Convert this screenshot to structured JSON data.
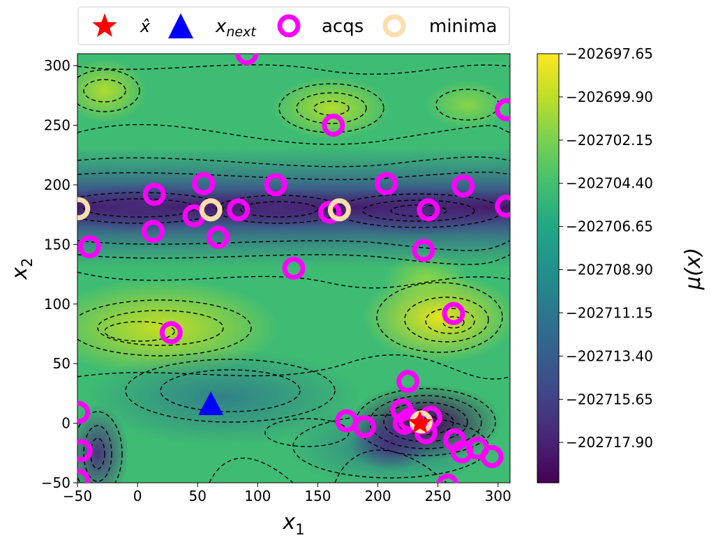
{
  "chart_data": {
    "type": "heatmap",
    "subtype": "contour-map-with-scatter",
    "xlabel": "x",
    "xlabel_sub": "1",
    "ylabel": "x",
    "ylabel_sub": "2",
    "xlim": [
      -50,
      310
    ],
    "ylim": [
      -50,
      310
    ],
    "xticks": [
      -50,
      0,
      50,
      100,
      150,
      200,
      250,
      300
    ],
    "yticks": [
      -50,
      0,
      50,
      100,
      150,
      200,
      250,
      300
    ],
    "xtick_labels": [
      "−50",
      "0",
      "50",
      "100",
      "150",
      "200",
      "250",
      "300"
    ],
    "ytick_labels": [
      "−50",
      "0",
      "50",
      "100",
      "150",
      "200",
      "250",
      "300"
    ],
    "colormap": "viridis",
    "contour_line_style": "dashed black",
    "colorbar": {
      "label": "μ(x)",
      "range": [
        -202720.0,
        -202697.65
      ],
      "ticks": [
        -202697.65,
        -202699.9,
        -202702.15,
        -202704.4,
        -202706.65,
        -202708.9,
        -202711.15,
        -202713.4,
        -202715.65,
        -202717.9
      ],
      "tick_labels": [
        "−202697.65",
        "−202699.90",
        "−202702.15",
        "−202704.40",
        "−202706.65",
        "−202708.90",
        "−202711.15",
        "−202713.40",
        "−202715.65",
        "−202717.90"
      ]
    },
    "legend": {
      "placement": "top-center, above plot",
      "entries": [
        {
          "label": "x̂",
          "marker": "star",
          "color": "#ff0000"
        },
        {
          "label": "x",
          "label_sub": "next",
          "marker": "triangle",
          "color": "#0000ff"
        },
        {
          "label": "acqs",
          "marker": "ring",
          "color": "#ff00ff"
        },
        {
          "label": "minima",
          "marker": "ring",
          "color": "#ffdead"
        }
      ]
    },
    "series": [
      {
        "name": "acqs",
        "points": [
          [
            91,
            310
          ],
          [
            163,
            250
          ],
          [
            307,
            263
          ],
          [
            14,
            192
          ],
          [
            55,
            201
          ],
          [
            115,
            200
          ],
          [
            207,
            201
          ],
          [
            271,
            199
          ],
          [
            47,
            174
          ],
          [
            84,
            179
          ],
          [
            160,
            177
          ],
          [
            242,
            179
          ],
          [
            307,
            182
          ],
          [
            13,
            161
          ],
          [
            67,
            156
          ],
          [
            238,
            145
          ],
          [
            -40,
            148
          ],
          [
            130,
            130
          ],
          [
            263,
            92
          ],
          [
            28,
            76
          ],
          [
            225,
            35
          ],
          [
            -49,
            9
          ],
          [
            220,
            11
          ],
          [
            226,
            3
          ],
          [
            222,
            0
          ],
          [
            244,
            5
          ],
          [
            237,
            0
          ],
          [
            174,
            2
          ],
          [
            189,
            -3
          ],
          [
            240,
            -8
          ],
          [
            264,
            -14
          ],
          [
            270,
            -24
          ],
          [
            283,
            -21
          ],
          [
            295,
            -28
          ],
          [
            -47,
            -23
          ],
          [
            -49,
            -48
          ],
          [
            258,
            -52
          ]
        ]
      },
      {
        "name": "minima",
        "points": [
          [
            -49,
            180
          ],
          [
            61,
            179
          ],
          [
            168,
            179
          ],
          [
            236,
            1
          ]
        ]
      },
      {
        "name": "x̂",
        "points": [
          [
            235,
            0
          ]
        ]
      },
      {
        "name": "x_next",
        "points": [
          [
            61,
            15
          ]
        ]
      }
    ]
  }
}
